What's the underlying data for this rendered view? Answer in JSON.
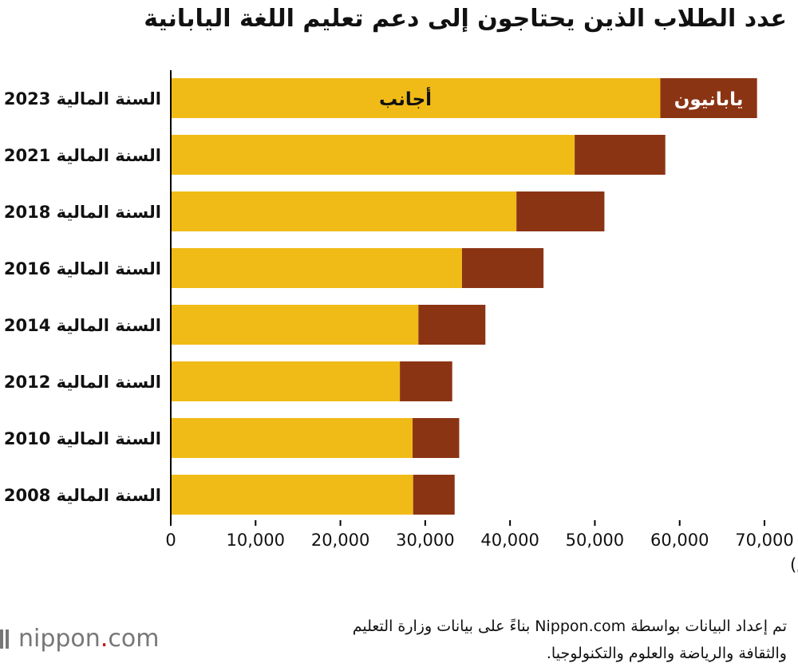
{
  "title": "عدد الطلاب الذين يحتاجون إلى دعم تعليم اللغة اليابانية",
  "source_line1": "تم إعداد البيانات بواسطة Nippon.com بناءً على بيانات وزارة التعليم",
  "source_line2": "والثقافة والرياضة والعلوم والتكنولوجيا.",
  "logo": {
    "name": "nippon",
    "dot": ".",
    "suffix": "com"
  },
  "colors": {
    "foreign": "#F0BB16",
    "japanese": "#8B3414"
  },
  "chart_data": {
    "type": "bar",
    "orientation": "horizontal",
    "stacked": true,
    "categories": [
      "السنة المالية 2023",
      "السنة المالية 2021",
      "السنة المالية 2018",
      "السنة المالية 2016",
      "السنة المالية 2014",
      "السنة المالية 2012",
      "السنة المالية 2010",
      "السنة المالية 2008"
    ],
    "series": [
      {
        "name": "أجانب",
        "values": [
          57718,
          47619,
          40755,
          34335,
          29198,
          27013,
          28511,
          28575
        ]
      },
      {
        "name": "يابانيون",
        "values": [
          11405,
          10688,
          10371,
          9612,
          7897,
          6171,
          5496,
          4895
        ]
      }
    ],
    "xlim": [
      0,
      70000
    ],
    "xticks": [
      0,
      10000,
      20000,
      30000,
      40000,
      50000,
      60000,
      70000
    ],
    "xtick_labels": [
      "0",
      "10,000",
      "20,000",
      "30,000",
      "40,000",
      "50,000",
      "60,000",
      "70,000"
    ],
    "unit_label": "(شخص)",
    "grid": false
  }
}
